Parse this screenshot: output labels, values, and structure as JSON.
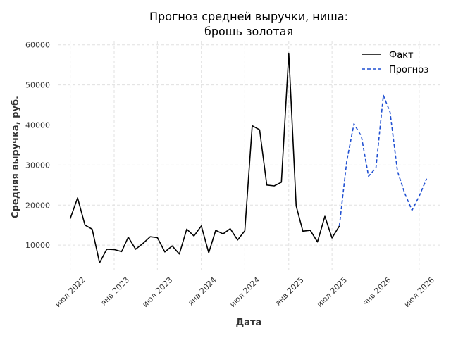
{
  "chart_data": {
    "type": "line",
    "title_lines": [
      "Прогноз средней выручки, ниша:",
      "брошь золотая"
    ],
    "xlabel": "Дата",
    "ylabel": "Средняя выручка, руб.",
    "ylim": [
      3000,
      61000
    ],
    "yticks": [
      10000,
      20000,
      30000,
      40000,
      50000,
      60000
    ],
    "xlim": [
      "2022-05-10",
      "2026-09-25"
    ],
    "xticks": [
      {
        "date": "2022-07-01",
        "label": "июл 2022"
      },
      {
        "date": "2023-01-01",
        "label": "янв 2023"
      },
      {
        "date": "2023-07-01",
        "label": "июл 2023"
      },
      {
        "date": "2024-01-01",
        "label": "янв 2024"
      },
      {
        "date": "2024-07-01",
        "label": "июл 2024"
      },
      {
        "date": "2025-01-01",
        "label": "янв 2025"
      },
      {
        "date": "2025-07-01",
        "label": "июл 2025"
      },
      {
        "date": "2026-01-01",
        "label": "янв 2026"
      },
      {
        "date": "2026-07-01",
        "label": "июл 2026"
      }
    ],
    "grid": true,
    "legend_position": "top-right",
    "series": [
      {
        "name": "Факт",
        "color": "#000000",
        "style": "solid",
        "points": [
          [
            "2022-07-01",
            16600
          ],
          [
            "2022-08-01",
            21800
          ],
          [
            "2022-09-01",
            15000
          ],
          [
            "2022-10-01",
            14000
          ],
          [
            "2022-11-01",
            5600
          ],
          [
            "2022-12-01",
            9000
          ],
          [
            "2023-01-01",
            8900
          ],
          [
            "2023-02-01",
            8400
          ],
          [
            "2023-03-01",
            12000
          ],
          [
            "2023-04-01",
            9000
          ],
          [
            "2023-05-01",
            10400
          ],
          [
            "2023-06-01",
            12100
          ],
          [
            "2023-07-01",
            11900
          ],
          [
            "2023-08-01",
            8300
          ],
          [
            "2023-09-01",
            9800
          ],
          [
            "2023-10-01",
            7800
          ],
          [
            "2023-11-01",
            14000
          ],
          [
            "2023-12-01",
            12300
          ],
          [
            "2024-01-01",
            14800
          ],
          [
            "2024-02-01",
            8100
          ],
          [
            "2024-03-01",
            13700
          ],
          [
            "2024-04-01",
            12800
          ],
          [
            "2024-05-01",
            14100
          ],
          [
            "2024-06-01",
            11300
          ],
          [
            "2024-07-01",
            13600
          ],
          [
            "2024-08-01",
            39800
          ],
          [
            "2024-09-01",
            38800
          ],
          [
            "2024-10-01",
            25000
          ],
          [
            "2024-11-01",
            24800
          ],
          [
            "2024-12-01",
            25700
          ],
          [
            "2025-01-01",
            57900
          ],
          [
            "2025-02-01",
            19800
          ],
          [
            "2025-03-01",
            13500
          ],
          [
            "2025-04-01",
            13700
          ],
          [
            "2025-05-01",
            10800
          ],
          [
            "2025-06-01",
            17200
          ],
          [
            "2025-07-01",
            11800
          ],
          [
            "2025-08-01",
            14800
          ]
        ]
      },
      {
        "name": "Прогноз",
        "color": "#1f4fd1",
        "style": "dashed",
        "points": [
          [
            "2025-08-01",
            14800
          ],
          [
            "2025-09-01",
            31000
          ],
          [
            "2025-10-01",
            40300
          ],
          [
            "2025-11-01",
            37200
          ],
          [
            "2025-12-01",
            27200
          ],
          [
            "2026-01-01",
            29300
          ],
          [
            "2026-02-01",
            47400
          ],
          [
            "2026-03-01",
            43200
          ],
          [
            "2026-04-01",
            28500
          ],
          [
            "2026-05-01",
            23000
          ],
          [
            "2026-06-01",
            18700
          ],
          [
            "2026-07-01",
            22200
          ],
          [
            "2026-08-01",
            26600
          ]
        ]
      }
    ]
  }
}
